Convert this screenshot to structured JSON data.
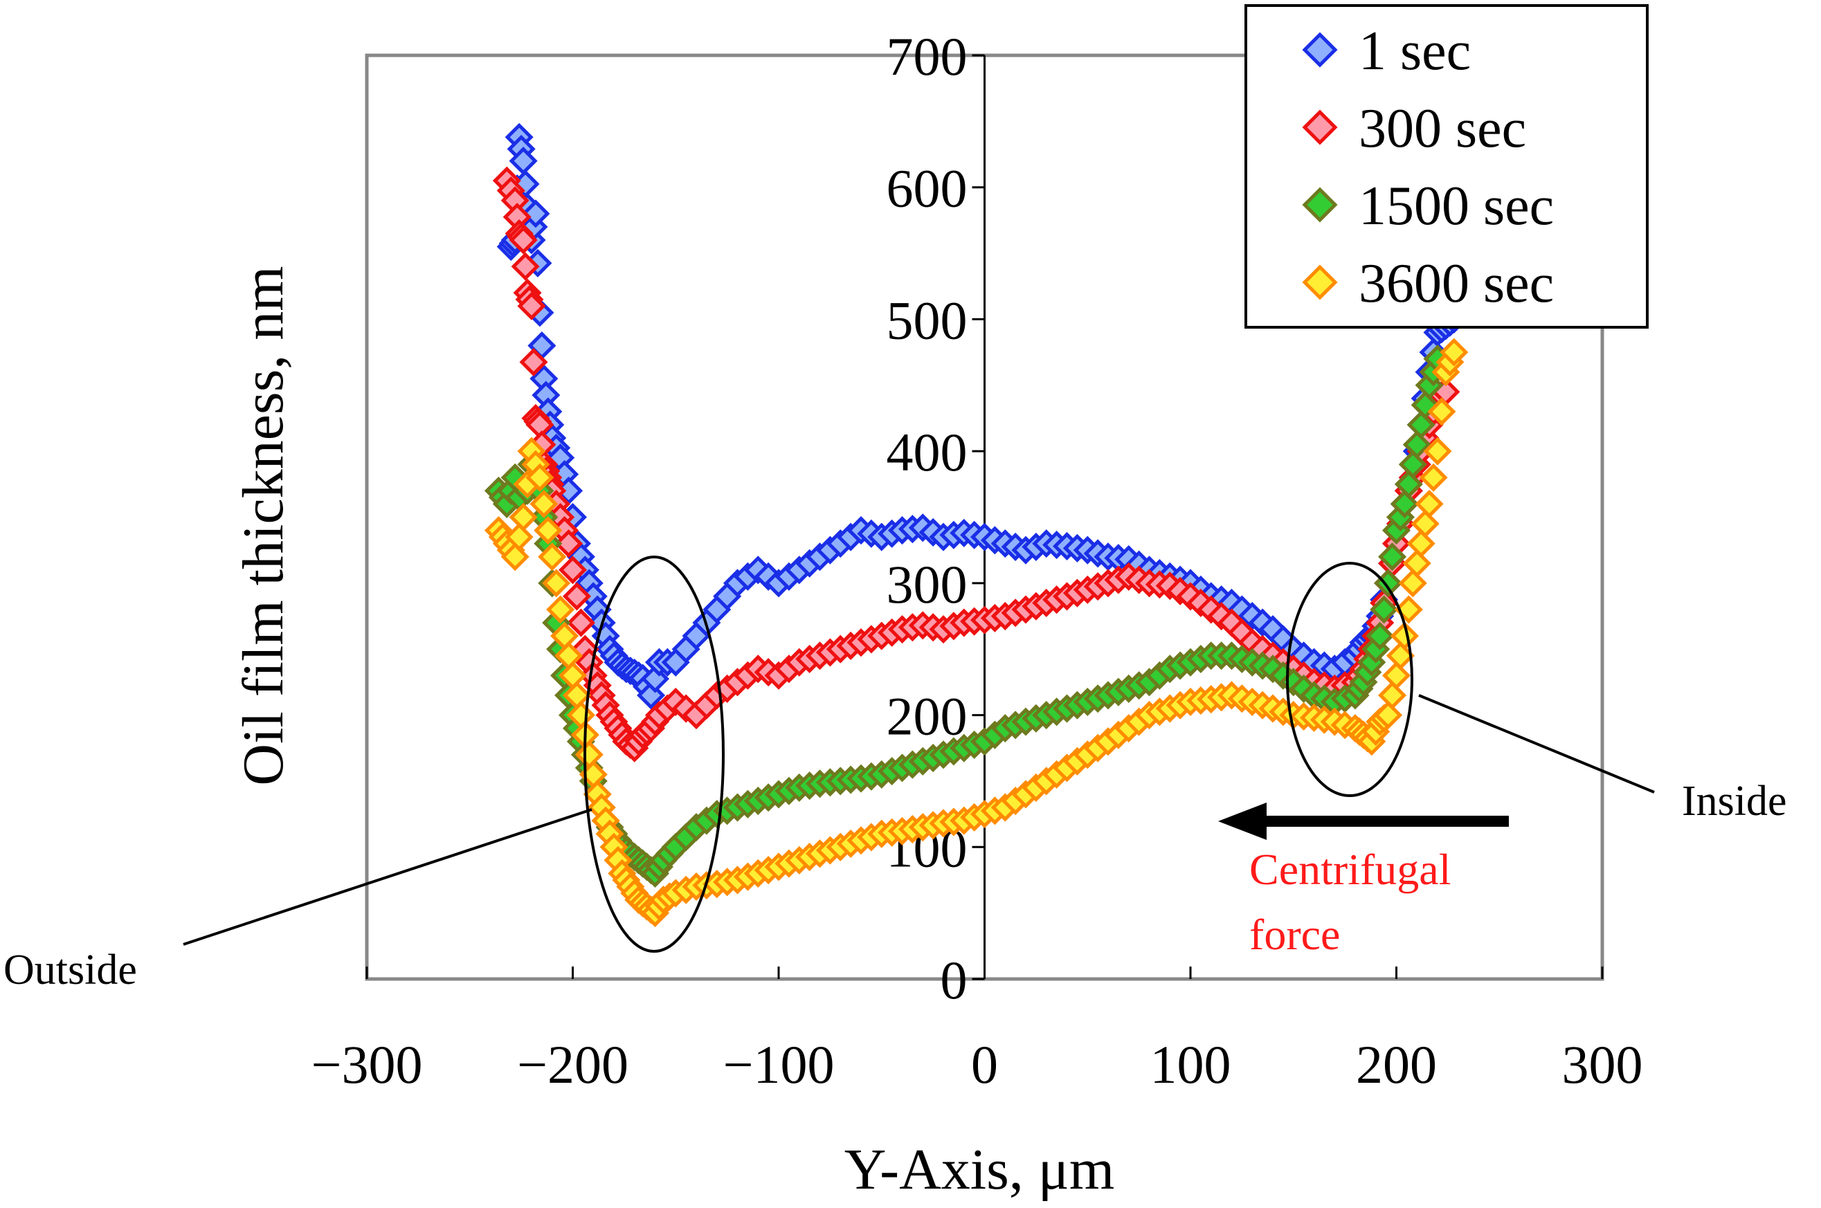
{
  "chart_data": {
    "type": "scatter",
    "title": "",
    "xlabel": "Y-Axis, μm",
    "ylabel": "Oil film thickness, nm",
    "xlim": [
      -300,
      300
    ],
    "ylim": [
      0,
      700
    ],
    "x_ticks": [
      "−300",
      "−200",
      "−100",
      "0",
      "100",
      "200",
      "300"
    ],
    "y_ticks": [
      "0",
      "100",
      "200",
      "300",
      "400",
      "500",
      "600",
      "700"
    ],
    "grid": false,
    "legend_position": "top-right",
    "colors": {
      "1 sec": {
        "fill": "#8fb0ff",
        "stroke": "#1a2ee6"
      },
      "300 sec": {
        "fill": "#ff9aaa",
        "stroke": "#ee1111"
      },
      "1500 sec": {
        "fill": "#33cc33",
        "stroke": "#6e7a1e"
      },
      "3600 sec": {
        "fill": "#ffee33",
        "stroke": "#ff8c00"
      }
    },
    "series": [
      {
        "name": "1 sec",
        "x": [
          -230,
          -228,
          -226,
          -224,
          -222,
          -220,
          -218,
          -216,
          -214,
          -212,
          -210,
          -206,
          -202,
          -198,
          -194,
          -190,
          -186,
          -182,
          -178,
          -174,
          -170,
          -166,
          -162,
          -158,
          -150,
          -140,
          -130,
          -120,
          -110,
          -100,
          -90,
          -80,
          -70,
          -60,
          -50,
          -40,
          -30,
          -20,
          -10,
          0,
          10,
          20,
          30,
          40,
          50,
          60,
          70,
          80,
          90,
          100,
          110,
          120,
          130,
          140,
          150,
          160,
          170,
          180,
          184,
          188,
          192,
          196,
          200,
          204,
          208,
          212,
          216,
          220,
          224,
          228
        ],
        "y": [
          555,
          560,
          638,
          620,
          585,
          560,
          580,
          505,
          455,
          430,
          410,
          395,
          370,
          330,
          310,
          290,
          270,
          250,
          240,
          235,
          232,
          228,
          215,
          240,
          240,
          260,
          280,
          300,
          310,
          300,
          310,
          320,
          330,
          340,
          335,
          340,
          342,
          335,
          338,
          335,
          330,
          325,
          330,
          328,
          325,
          320,
          318,
          310,
          305,
          300,
          290,
          285,
          275,
          265,
          250,
          240,
          235,
          245,
          255,
          260,
          275,
          300,
          330,
          360,
          380,
          420,
          460,
          490,
          495,
          500
        ]
      },
      {
        "name": "300 sec",
        "x": [
          -232,
          -228,
          -226,
          -224,
          -222,
          -220,
          -218,
          -216,
          -214,
          -212,
          -210,
          -206,
          -202,
          -198,
          -194,
          -190,
          -186,
          -182,
          -178,
          -174,
          -170,
          -166,
          -162,
          -158,
          -150,
          -140,
          -130,
          -120,
          -110,
          -100,
          -90,
          -80,
          -70,
          -60,
          -50,
          -40,
          -30,
          -20,
          -10,
          0,
          10,
          20,
          30,
          40,
          50,
          60,
          70,
          80,
          90,
          100,
          110,
          120,
          130,
          140,
          150,
          160,
          170,
          180,
          184,
          188,
          192,
          196,
          200,
          204,
          208,
          212,
          216,
          220,
          224
        ],
        "y": [
          605,
          590,
          565,
          560,
          520,
          510,
          425,
          420,
          390,
          380,
          370,
          350,
          330,
          290,
          250,
          230,
          215,
          200,
          190,
          180,
          175,
          185,
          190,
          200,
          210,
          200,
          215,
          225,
          235,
          230,
          240,
          245,
          250,
          255,
          260,
          265,
          268,
          265,
          270,
          272,
          275,
          280,
          285,
          290,
          295,
          300,
          305,
          300,
          298,
          290,
          280,
          270,
          255,
          245,
          235,
          225,
          220,
          225,
          235,
          250,
          270,
          300,
          330,
          360,
          380,
          400,
          420,
          440,
          445
        ]
      },
      {
        "name": "1500 sec",
        "x": [
          -236,
          -232,
          -228,
          -224,
          -220,
          -216,
          -212,
          -208,
          -204,
          -200,
          -196,
          -192,
          -188,
          -184,
          -180,
          -176,
          -172,
          -168,
          -164,
          -160,
          -156,
          -150,
          -140,
          -130,
          -120,
          -110,
          -100,
          -90,
          -80,
          -70,
          -60,
          -50,
          -40,
          -30,
          -20,
          -10,
          0,
          10,
          20,
          30,
          40,
          50,
          60,
          70,
          80,
          90,
          100,
          110,
          120,
          130,
          140,
          150,
          160,
          170,
          180,
          184,
          188,
          192,
          196,
          200,
          204,
          208,
          212,
          216,
          220
        ],
        "y": [
          370,
          360,
          380,
          350,
          390,
          370,
          330,
          270,
          230,
          200,
          180,
          160,
          140,
          120,
          110,
          100,
          95,
          90,
          85,
          80,
          90,
          100,
          115,
          125,
          130,
          135,
          140,
          145,
          148,
          150,
          152,
          155,
          160,
          165,
          170,
          175,
          180,
          190,
          195,
          200,
          205,
          210,
          215,
          220,
          225,
          235,
          240,
          245,
          245,
          240,
          235,
          225,
          215,
          210,
          215,
          225,
          240,
          260,
          300,
          340,
          360,
          390,
          420,
          450,
          470
        ]
      },
      {
        "name": "3600 sec",
        "x": [
          -236,
          -232,
          -228,
          -224,
          -220,
          -216,
          -212,
          -208,
          -204,
          -200,
          -196,
          -192,
          -188,
          -184,
          -180,
          -176,
          -172,
          -168,
          -164,
          -160,
          -156,
          -150,
          -140,
          -130,
          -120,
          -110,
          -100,
          -90,
          -80,
          -70,
          -60,
          -50,
          -40,
          -30,
          -20,
          -10,
          0,
          10,
          20,
          30,
          40,
          50,
          60,
          70,
          80,
          90,
          100,
          110,
          120,
          130,
          140,
          150,
          160,
          170,
          180,
          184,
          188,
          192,
          196,
          200,
          204,
          208,
          212,
          216,
          220,
          224,
          228
        ],
        "y": [
          340,
          330,
          320,
          350,
          400,
          380,
          340,
          300,
          260,
          230,
          200,
          170,
          140,
          120,
          100,
          80,
          70,
          60,
          55,
          50,
          60,
          65,
          70,
          72,
          75,
          80,
          85,
          90,
          95,
          100,
          105,
          110,
          112,
          115,
          118,
          120,
          125,
          130,
          140,
          150,
          160,
          170,
          180,
          190,
          200,
          205,
          210,
          212,
          215,
          210,
          205,
          200,
          198,
          195,
          190,
          185,
          180,
          195,
          200,
          230,
          260,
          300,
          330,
          360,
          400,
          460,
          475
        ]
      }
    ],
    "annotations": {
      "outside": "Outside",
      "inside": "Inside",
      "force_line1": "Centrifugal",
      "force_line2": "force"
    }
  }
}
